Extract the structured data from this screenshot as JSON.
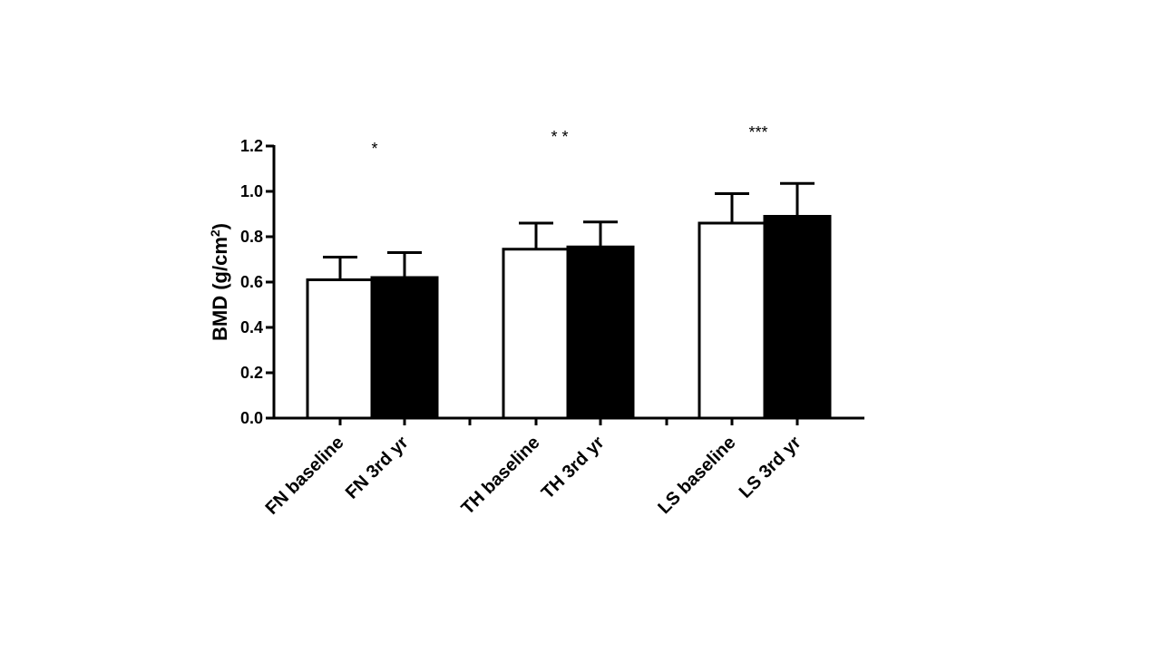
{
  "chart_data": {
    "type": "bar",
    "categories": [
      "FN baseline",
      "FN 3rd yr",
      "TH baseline",
      "TH 3rd yr",
      "LS baseline",
      "LS 3rd yr"
    ],
    "values": [
      0.61,
      0.62,
      0.745,
      0.755,
      0.86,
      0.89
    ],
    "error_sd": [
      0.1,
      0.11,
      0.115,
      0.11,
      0.13,
      0.145
    ],
    "fills": [
      "#ffffff",
      "#000000",
      "#ffffff",
      "#000000",
      "#ffffff",
      "#000000"
    ],
    "groups": [
      {
        "indices": [
          0,
          1
        ],
        "significance": "*"
      },
      {
        "indices": [
          2,
          3
        ],
        "significance": "* *"
      },
      {
        "indices": [
          4,
          5
        ],
        "significance": "***"
      }
    ],
    "ylabel_main": "BMD (g/cm",
    "ylabel_sup": "2",
    "ylabel_end": ")",
    "ylim": [
      0,
      1.2
    ],
    "yticks": [
      "0.0",
      "0.2",
      "0.4",
      "0.6",
      "0.8",
      "1.0",
      "1.2"
    ],
    "grid": false,
    "legend": "none"
  }
}
